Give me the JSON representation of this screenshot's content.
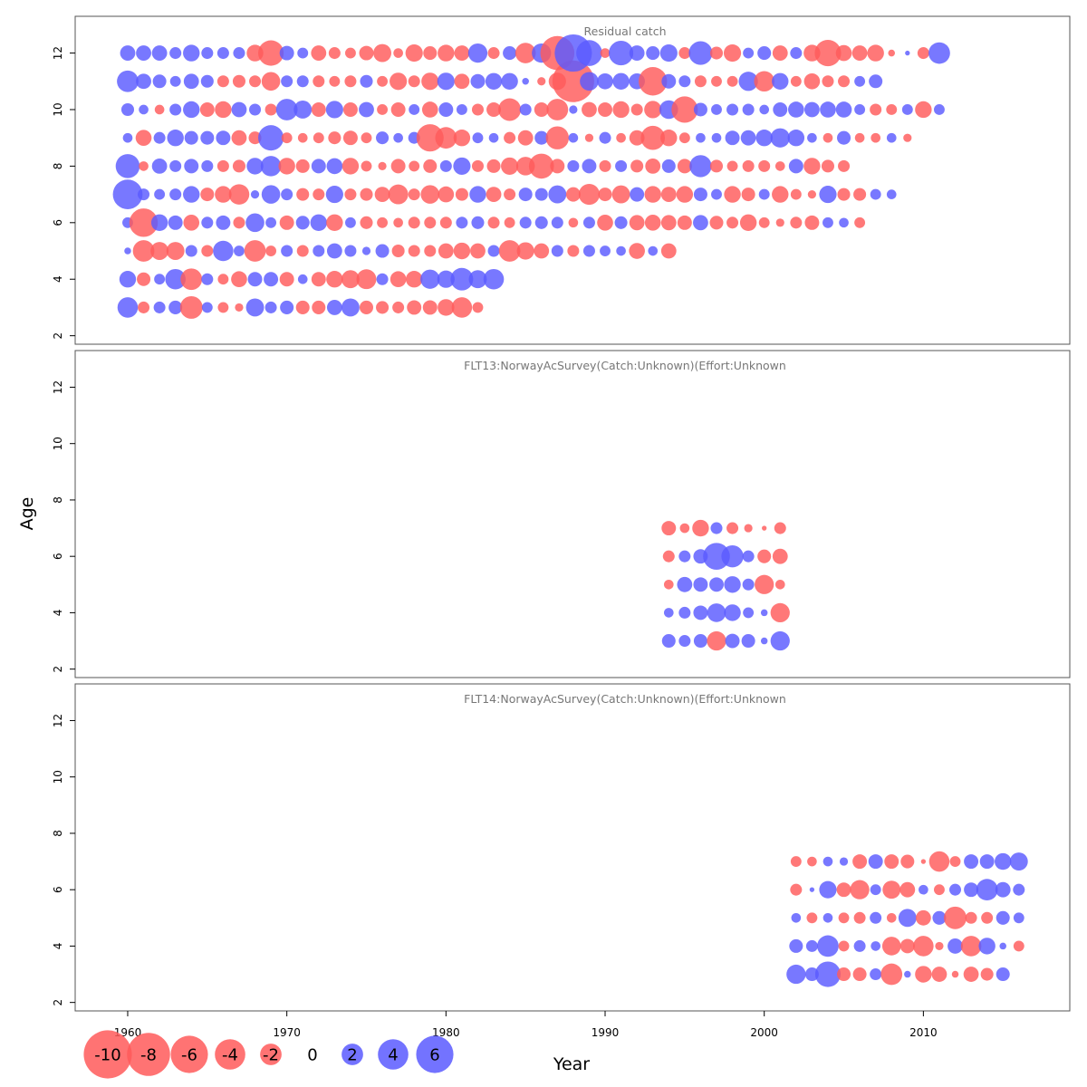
{
  "chart_data": {
    "type": "scatter",
    "xlabel": "Year",
    "ylabel": "Age",
    "x_ticks": [
      1960,
      1970,
      1980,
      1990,
      2000,
      2010
    ],
    "y_ticks": [
      2,
      4,
      6,
      8,
      10,
      12
    ],
    "xlim": [
      1956.7,
      2019.2
    ],
    "ylim": [
      1.7,
      13.3
    ],
    "colors": {
      "negative": "#ff5a5a",
      "positive": "#5a5aff",
      "frame": "#555555",
      "panel_title": "#777777"
    },
    "legend": {
      "placement": "bottom-left",
      "entries": [
        {
          "label": "-10",
          "value": -10
        },
        {
          "label": "-8",
          "value": -8
        },
        {
          "label": "-6",
          "value": -6
        },
        {
          "label": "-4",
          "value": -4
        },
        {
          "label": "-2",
          "value": -2
        },
        {
          "label": "0",
          "value": 0
        },
        {
          "label": "2",
          "value": 2
        },
        {
          "label": "4",
          "value": 4
        },
        {
          "label": "6",
          "value": 6
        }
      ]
    },
    "panels": [
      {
        "title": "Residual catch",
        "year_start": 1960,
        "ages": [
          3,
          4,
          5,
          6,
          7,
          8,
          9,
          10,
          11,
          12
        ],
        "rows": {
          "12": [
            1.0,
            1.0,
            1.0,
            0.6,
            1.2,
            0.6,
            0.6,
            0.6,
            -1.2,
            -2.8,
            0.9,
            0.5,
            -1.0,
            -0.6,
            -0.5,
            -0.9,
            -1.4,
            -0.4,
            -1.3,
            -0.8,
            -1.2,
            -1.0,
            1.6,
            -0.6,
            0.8,
            -1.8,
            1.6,
            -5.0,
            6.0,
            2.9,
            -0.4,
            2.6,
            1.0,
            0.8,
            1.3,
            -0.6,
            2.4,
            -0.7,
            -1.3,
            0.5,
            0.8,
            -1.0,
            0.6,
            -1.2,
            -3.0,
            -1.1,
            -1.0,
            -1.2,
            -0.2,
            0.1,
            -0.6,
            2.0
          ],
          "11": [
            2.0,
            1.0,
            0.8,
            0.5,
            1.0,
            0.7,
            -0.6,
            -0.7,
            -0.6,
            -1.5,
            0.6,
            0.6,
            -0.6,
            -0.5,
            -0.6,
            0.7,
            -0.5,
            -1.3,
            -0.6,
            -1.3,
            1.3,
            -1.0,
            0.9,
            1.2,
            1.2,
            0.2,
            -0.3,
            -1.3,
            -7.5,
            1.5,
            1.1,
            1.2,
            1.1,
            -3.5,
            0.9,
            0.6,
            -0.6,
            -0.5,
            -0.5,
            1.6,
            -1.8,
            1.2,
            -0.5,
            -1.1,
            -0.6,
            -0.6,
            0.5,
            0.8
          ],
          "10": [
            0.7,
            0.4,
            -0.4,
            0.6,
            1.2,
            -0.9,
            -1.2,
            1.0,
            0.6,
            -0.6,
            2.0,
            1.4,
            -0.9,
            1.3,
            -0.9,
            1.0,
            -0.5,
            -0.9,
            0.5,
            -1.1,
            0.9,
            0.5,
            -0.6,
            -0.9,
            -2.2,
            0.6,
            -0.9,
            -2.0,
            0.3,
            -1.0,
            -0.9,
            -1.2,
            -0.6,
            -1.3,
            1.5,
            -3.0,
            0.8,
            0.5,
            0.6,
            0.6,
            0.4,
            0.9,
            1.1,
            1.0,
            1.1,
            1.1,
            0.5,
            -0.6,
            -0.5,
            0.5,
            -1.2,
            0.5
          ],
          "9": [
            0.4,
            -1.1,
            0.6,
            1.2,
            0.8,
            0.8,
            0.9,
            -1.0,
            -0.7,
            2.8,
            -0.5,
            -0.4,
            -0.5,
            -0.7,
            -0.9,
            -0.5,
            0.7,
            0.4,
            0.6,
            -3.2,
            -2.0,
            -1.2,
            0.5,
            0.4,
            -0.6,
            -1.0,
            0.8,
            -2.3,
            0.4,
            -0.3,
            0.6,
            -0.4,
            -1.0,
            -2.5,
            -1.2,
            -0.5,
            0.4,
            0.4,
            0.9,
            1.0,
            1.2,
            1.6,
            1.2,
            0.4,
            -0.4,
            0.8,
            -0.4,
            -0.4,
            0.4,
            -0.3
          ],
          "8": [
            2.5,
            -0.4,
            1.0,
            0.6,
            0.9,
            0.6,
            -0.6,
            -0.7,
            1.2,
            1.8,
            -1.2,
            -0.8,
            0.9,
            1.1,
            -1.2,
            -0.5,
            -0.3,
            -0.9,
            -0.5,
            -0.8,
            0.6,
            1.3,
            -0.6,
            -0.8,
            -1.3,
            -1.5,
            -2.7,
            -0.9,
            0.6,
            0.9,
            -0.6,
            0.6,
            -0.7,
            -1.0,
            0.8,
            -0.9,
            2.1,
            -0.7,
            -0.5,
            -0.6,
            -0.6,
            -0.4,
            0.9,
            -1.2,
            -0.7,
            -0.6
          ],
          "7": [
            3.8,
            0.6,
            0.5,
            0.6,
            1.2,
            -0.8,
            -1.2,
            -1.8,
            0.3,
            1.5,
            0.6,
            -0.7,
            -0.6,
            1.3,
            -0.6,
            -0.7,
            -1.0,
            -1.7,
            -0.6,
            -1.5,
            -1.1,
            -0.7,
            1.2,
            -1.0,
            -0.6,
            0.8,
            0.7,
            1.4,
            -0.9,
            -1.9,
            -0.8,
            -1.4,
            0.9,
            -1.2,
            -1.0,
            -1.2,
            0.8,
            0.5,
            -1.2,
            -0.8,
            0.5,
            -1.2,
            -0.5,
            -0.3,
            1.3,
            -0.7,
            -0.7,
            0.5,
            0.4
          ],
          "6": [
            0.5,
            -3.5,
            1.2,
            0.9,
            -1.1,
            0.6,
            0.9,
            -0.6,
            1.5,
            0.5,
            -0.9,
            0.8,
            1.2,
            -1.2,
            0.5,
            -0.7,
            -0.5,
            -0.4,
            -0.6,
            -0.6,
            -0.6,
            0.6,
            0.7,
            -0.6,
            -0.5,
            0.6,
            0.7,
            0.6,
            -0.4,
            0.6,
            -1.1,
            0.7,
            -1.0,
            -1.1,
            -1.0,
            -0.9,
            1.0,
            -0.8,
            -0.6,
            -1.2,
            -0.5,
            -0.3,
            -0.6,
            -0.9,
            0.5,
            0.4,
            -0.5
          ],
          "5": [
            0.2,
            -2.0,
            -1.4,
            -1.4,
            0.6,
            -0.6,
            1.8,
            0.5,
            -2.0,
            -0.5,
            0.6,
            -0.6,
            0.6,
            1.0,
            0.6,
            0.3,
            0.8,
            -0.7,
            -0.6,
            -0.6,
            -1.0,
            -1.2,
            -1.0,
            0.6,
            -2.0,
            -1.3,
            -1.0,
            0.6,
            -0.6,
            0.6,
            0.5,
            0.4,
            -1.1,
            0.4,
            -1.0
          ],
          "4": [
            1.2,
            -0.8,
            0.5,
            1.8,
            -2.0,
            0.6,
            -0.5,
            -1.1,
            0.9,
            0.9,
            -0.9,
            0.4,
            -0.9,
            -1.2,
            -1.4,
            -1.7,
            0.6,
            -1.1,
            -1.2,
            1.6,
            1.3,
            2.2,
            1.4,
            1.8
          ],
          "3": [
            1.8,
            -0.6,
            0.6,
            0.8,
            -2.2,
            0.5,
            -0.5,
            -0.3,
            1.4,
            0.6,
            0.8,
            -0.8,
            -0.8,
            1.0,
            1.4,
            -0.8,
            -0.7,
            -0.6,
            -0.9,
            -0.9,
            -1.2,
            -1.8,
            -0.5
          ]
        }
      },
      {
        "title": "FLT13:NorwayAcSurvey(Catch:Unknown)(Effort:Unknown",
        "year_start": 1994,
        "ages": [
          3,
          4,
          5,
          6,
          7
        ],
        "rows": {
          "7": [
            -0.9,
            -0.4,
            -1.2,
            0.6,
            -0.6,
            -0.3,
            -0.1,
            -0.6
          ],
          "6": [
            -0.6,
            0.6,
            0.9,
            3.1,
            2.1,
            0.6,
            -0.8,
            -1.0
          ],
          "5": [
            -0.4,
            1.0,
            0.9,
            0.9,
            1.2,
            0.6,
            -1.6,
            -0.4
          ],
          "4": [
            0.4,
            0.6,
            0.9,
            1.5,
            1.2,
            0.5,
            0.2,
            -1.6
          ],
          "3": [
            0.8,
            0.6,
            0.8,
            -1.6,
            0.9,
            0.8,
            0.2,
            1.6
          ]
        }
      },
      {
        "title": "FLT14:NorwayAcSurvey(Catch:Unknown)(Effort:Unknown",
        "year_start": 2002,
        "ages": [
          3,
          4,
          5,
          6,
          7
        ],
        "rows": {
          "7": [
            -0.5,
            -0.4,
            0.4,
            0.3,
            -0.9,
            0.9,
            -0.9,
            -0.8,
            -0.1,
            -1.8,
            -0.5,
            0.9,
            0.9,
            1.2,
            1.4
          ],
          "6": [
            -0.6,
            0.1,
            1.3,
            -0.9,
            -1.6,
            0.5,
            -1.4,
            -1.0,
            0.4,
            -0.5,
            0.6,
            0.9,
            2.0,
            1.0,
            0.6
          ],
          "5": [
            0.4,
            -0.5,
            0.4,
            -0.5,
            -0.6,
            0.6,
            -0.4,
            1.4,
            -1.0,
            0.8,
            -2.2,
            -0.6,
            -0.6,
            0.8,
            0.5
          ],
          "4": [
            0.8,
            0.6,
            2.0,
            -0.5,
            0.6,
            0.4,
            -1.5,
            -0.9,
            -1.8,
            -0.3,
            1.0,
            -1.8,
            1.2,
            0.2,
            -0.5
          ],
          "3": [
            1.6,
            0.8,
            2.8,
            -0.8,
            -0.8,
            0.6,
            -2.0,
            0.2,
            -1.2,
            -1.0,
            -0.2,
            -1.0,
            -0.7,
            0.8
          ]
        }
      }
    ]
  }
}
